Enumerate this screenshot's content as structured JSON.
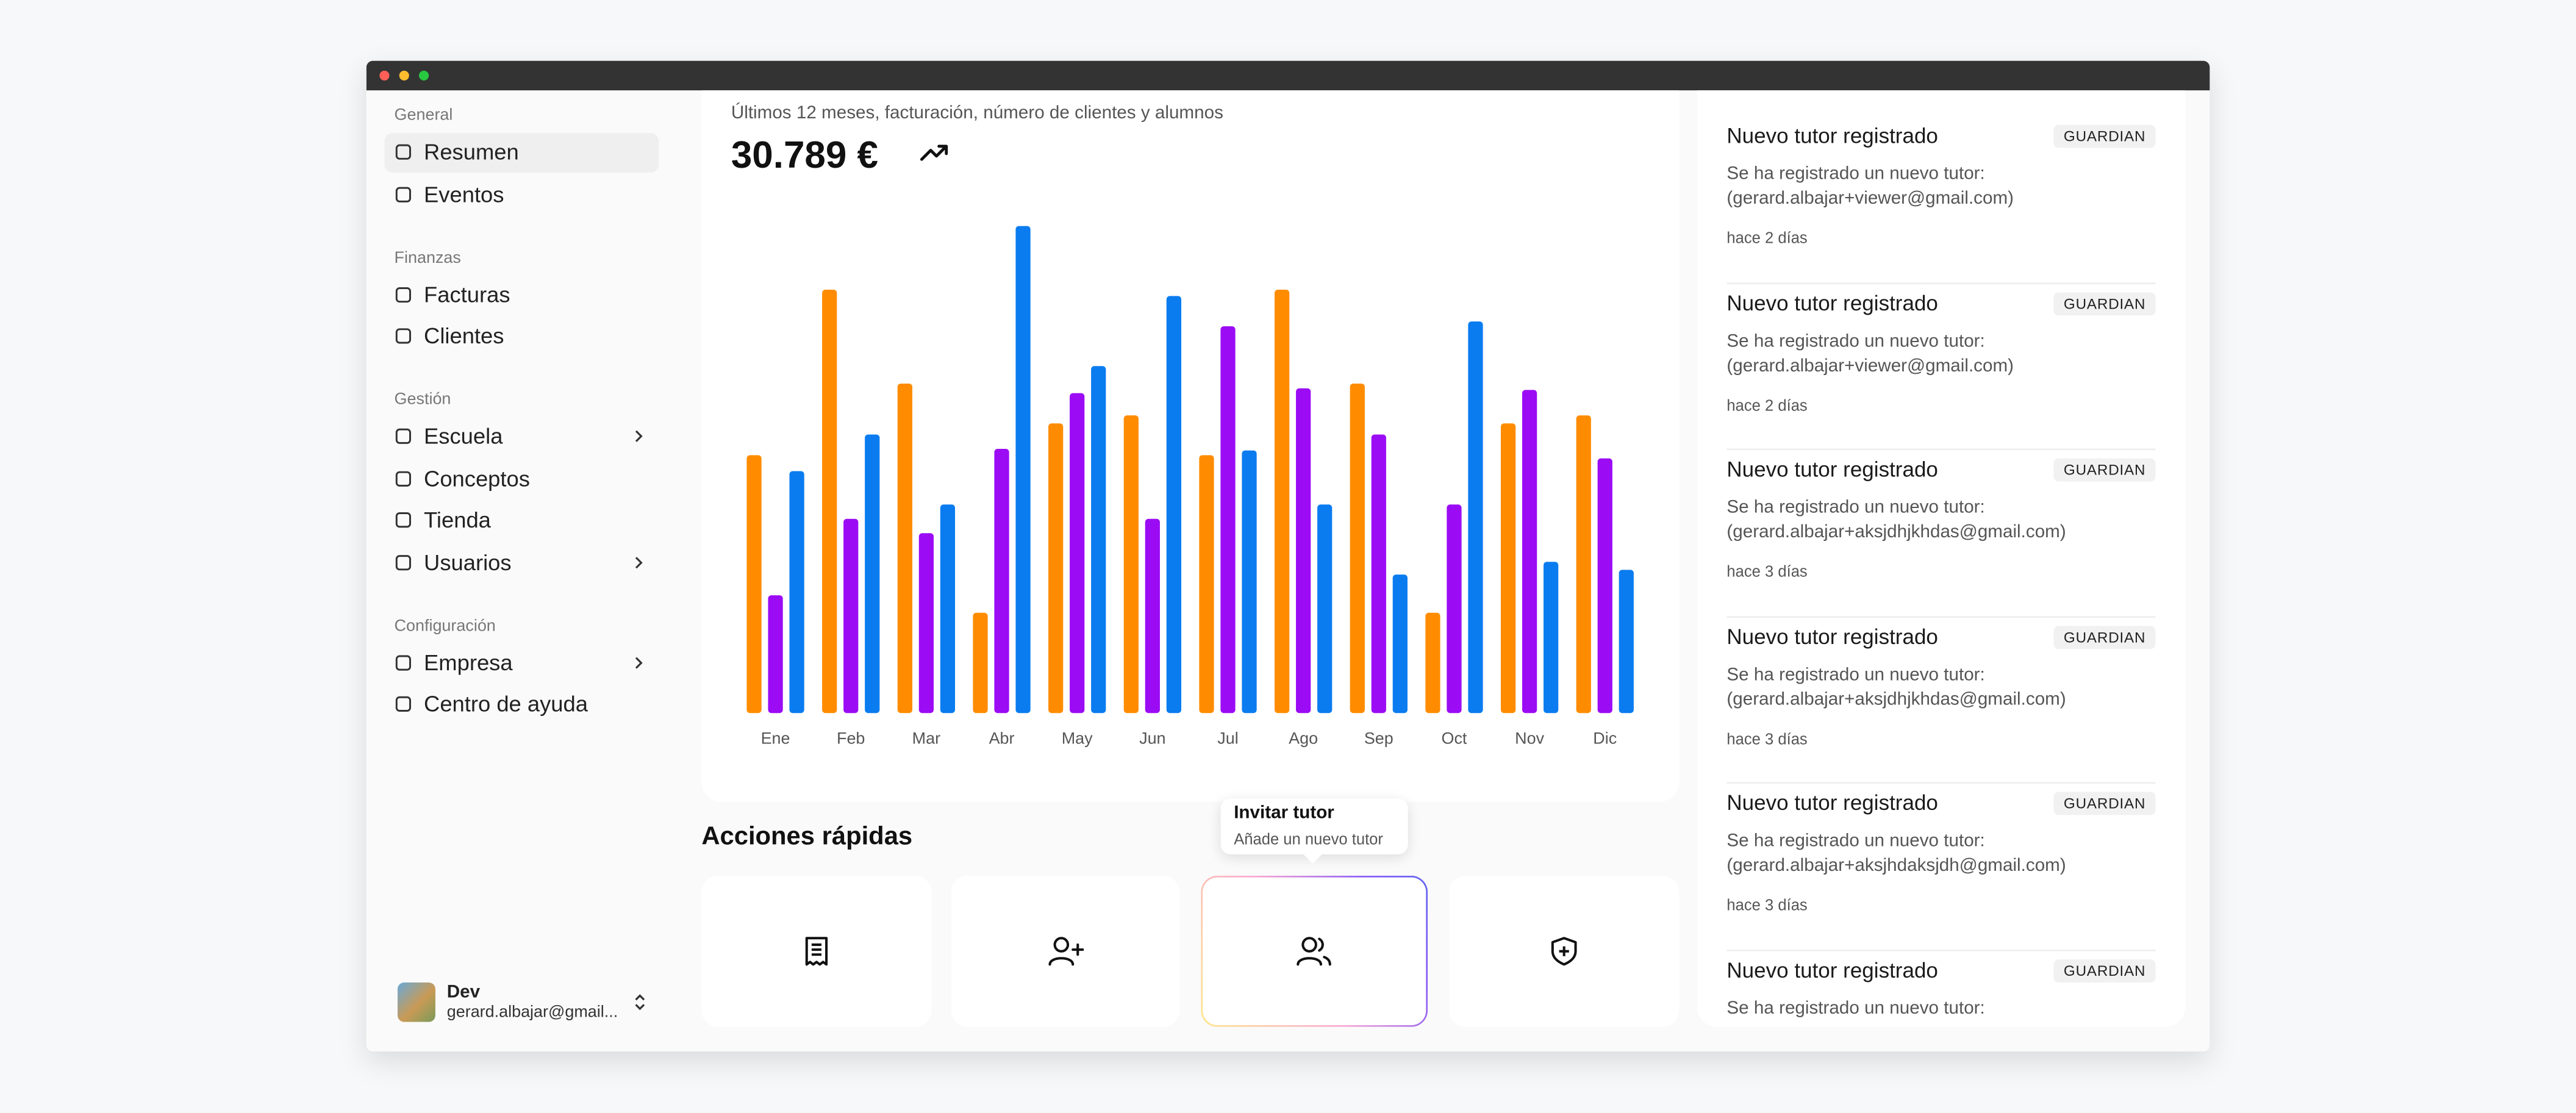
{
  "sidebar": {
    "sections": [
      {
        "title": "General",
        "items": [
          {
            "label": "Resumen",
            "active": true
          },
          {
            "label": "Eventos"
          }
        ]
      },
      {
        "title": "Finanzas",
        "items": [
          {
            "label": "Facturas"
          },
          {
            "label": "Clientes"
          }
        ]
      },
      {
        "title": "Gestión",
        "items": [
          {
            "label": "Escuela",
            "expandable": true
          },
          {
            "label": "Conceptos"
          },
          {
            "label": "Tienda"
          },
          {
            "label": "Usuarios",
            "expandable": true
          }
        ]
      },
      {
        "title": "Configuración",
        "items": [
          {
            "label": "Empresa",
            "expandable": true
          },
          {
            "label": "Centro de ayuda"
          }
        ]
      }
    ],
    "user": {
      "name": "Dev",
      "email": "gerard.albajar@gmail..."
    }
  },
  "chart_data": {
    "type": "bar",
    "subtitle": "Últimos 12 meses, facturación, número de clientes y alumnos",
    "headline": "30.789 €",
    "categories": [
      "Ene",
      "Feb",
      "Mar",
      "Abr",
      "May",
      "Jun",
      "Jul",
      "Ago",
      "Sep",
      "Oct",
      "Nov",
      "Dic"
    ],
    "series": [
      {
        "color": "#ff8c00",
        "values": [
          162,
          266,
          207,
          63,
          182,
          187,
          162,
          266,
          207,
          63,
          182,
          187
        ]
      },
      {
        "color": "#9b0cf5",
        "values": [
          74,
          122,
          113,
          166,
          201,
          122,
          243,
          204,
          175,
          131,
          203,
          160
        ]
      },
      {
        "color": "#0a7cf0",
        "values": [
          152,
          175,
          131,
          306,
          218,
          262,
          165,
          131,
          87,
          246,
          95,
          90
        ]
      }
    ],
    "ylim": [
      0,
      320
    ]
  },
  "quick_actions": {
    "title": "Acciones rápidas",
    "tooltip": {
      "title": "Invitar tutor",
      "description": "Añade un nuevo tutor"
    }
  },
  "notifications": [
    {
      "title": "Nuevo tutor registrado",
      "badge": "GUARDIAN",
      "message": "Se ha registrado un nuevo tutor:",
      "email": "(gerard.albajar+viewer@gmail.com)",
      "time": "hace 2 días"
    },
    {
      "title": "Nuevo tutor registrado",
      "badge": "GUARDIAN",
      "message": "Se ha registrado un nuevo tutor:",
      "email": "(gerard.albajar+viewer@gmail.com)",
      "time": "hace 2 días"
    },
    {
      "title": "Nuevo tutor registrado",
      "badge": "GUARDIAN",
      "message": "Se ha registrado un nuevo tutor:",
      "email": "(gerard.albajar+aksjdhjkhdas@gmail.com)",
      "time": "hace 3 días"
    },
    {
      "title": "Nuevo tutor registrado",
      "badge": "GUARDIAN",
      "message": "Se ha registrado un nuevo tutor:",
      "email": "(gerard.albajar+aksjdhjkhdas@gmail.com)",
      "time": "hace 3 días"
    },
    {
      "title": "Nuevo tutor registrado",
      "badge": "GUARDIAN",
      "message": "Se ha registrado un nuevo tutor:",
      "email": "(gerard.albajar+aksjhdaksjdh@gmail.com)",
      "time": "hace 3 días"
    },
    {
      "title": "Nuevo tutor registrado",
      "badge": "GUARDIAN",
      "message": "Se ha registrado un nuevo tutor:"
    }
  ]
}
